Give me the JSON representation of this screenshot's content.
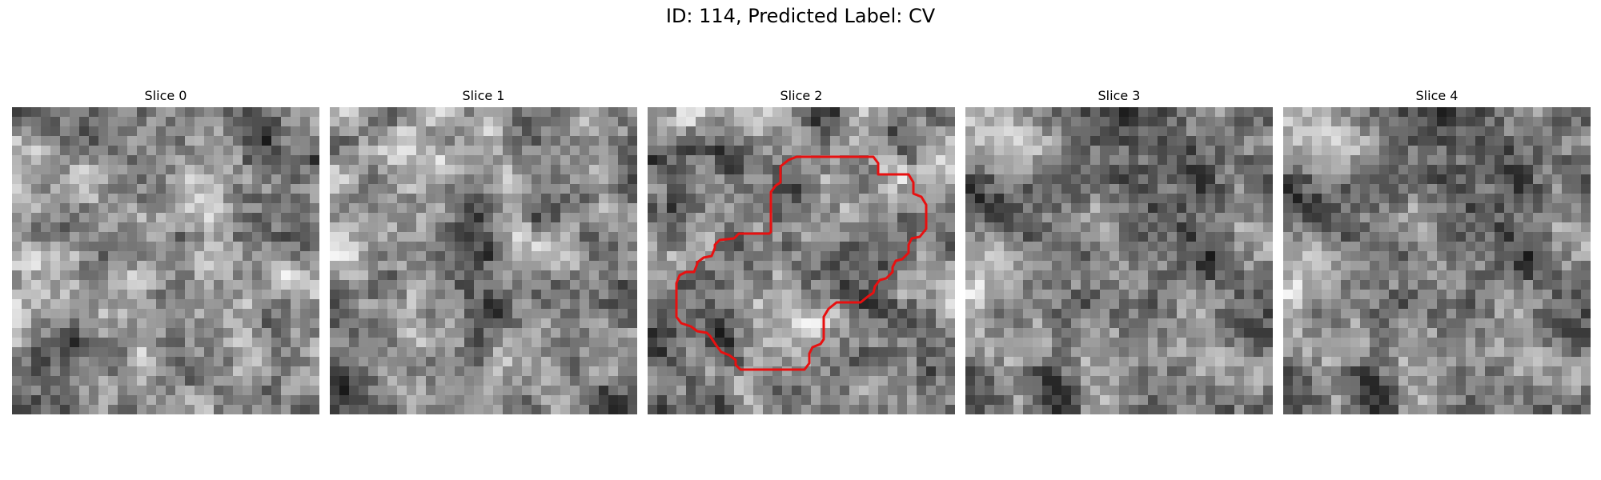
{
  "figure": {
    "title": "ID: 114, Predicted Label: CV"
  },
  "slices": [
    {
      "title": "Slice 0"
    },
    {
      "title": "Slice 1"
    },
    {
      "title": "Slice 2",
      "has_contour": true
    },
    {
      "title": "Slice 3"
    },
    {
      "title": "Slice 4"
    }
  ],
  "colors": {
    "contour": "#e81010",
    "background": "#ffffff"
  }
}
